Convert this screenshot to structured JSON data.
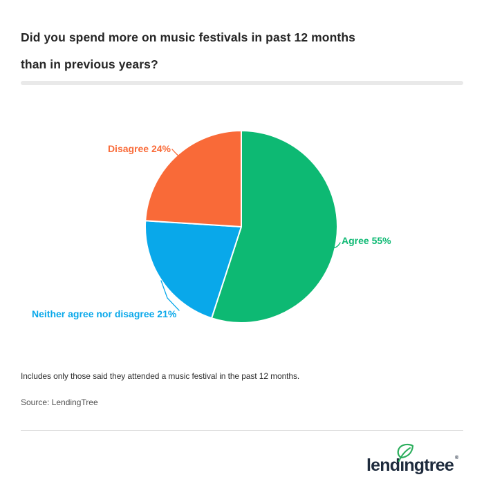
{
  "title": {
    "line1": "Did you spend more on music festivals in past 12 months",
    "line2": "than in previous years?"
  },
  "chart_data": {
    "type": "pie",
    "title": "Did you spend more on music festivals in past 12 months than in previous years?",
    "start_angle_deg": 0,
    "direction": "clockwise",
    "total": 100,
    "slices": [
      {
        "label": "Agree",
        "value": 55,
        "display": "Agree 55%",
        "color": "#0DB973"
      },
      {
        "label": "Neither agree nor disagree",
        "value": 21,
        "display": "Neither agree nor disagree 21%",
        "color": "#09A8EA"
      },
      {
        "label": "Disagree",
        "value": 24,
        "display": "Disagree 24%",
        "color": "#F96A38"
      }
    ],
    "legend_position": "direct-labels"
  },
  "footnote": "Includes only those said they attended a music festival in the past 12 months.",
  "source": "Source: LendingTree",
  "logo": {
    "text": "lendingtree",
    "registered": "®",
    "wordmark_color": "#1E2B3D",
    "leaf_color": "#2BAE5C"
  },
  "colors": {
    "background": "#FFFFFF",
    "title_text": "#262626",
    "divider": "#E9E9E9",
    "footnote_text": "#2E2E2E",
    "source_text": "#4F4F4F",
    "bottom_rule": "#D8D8D8"
  }
}
